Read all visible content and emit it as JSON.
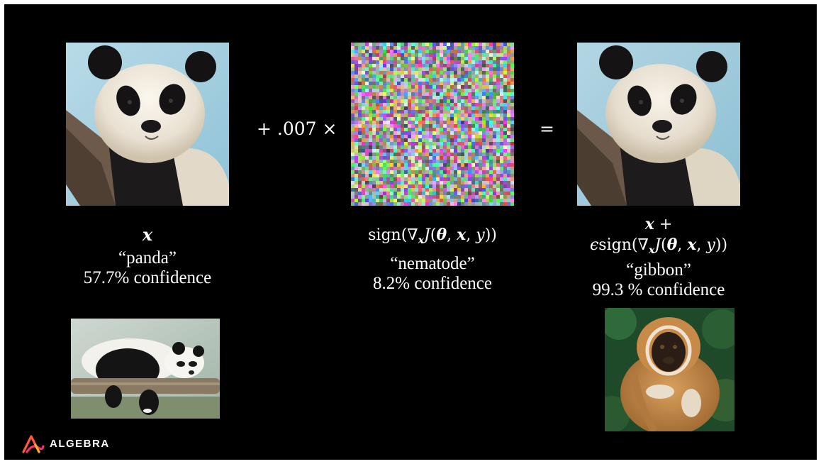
{
  "formula": {
    "plus_coef": "+ .007 ×",
    "equals": "="
  },
  "original": {
    "var": "x",
    "class_label": "“panda”",
    "confidence": "57.7% confidence"
  },
  "perturbation": {
    "func": "sign(",
    "nabla": "∇",
    "subscript": "x",
    "loss": "J",
    "open_paren": "(",
    "theta": "θ",
    "comma1": ", ",
    "x": "x",
    "comma2": ", ",
    "y": "y",
    "close_parens": "))",
    "class_label": "“nematode”",
    "confidence": "8.2% confidence"
  },
  "adversarial": {
    "line1_var": "x",
    "line1_plus": " +",
    "epsilon": "ϵ",
    "func": "sign(",
    "nabla": "∇",
    "subscript": "x",
    "loss": "J",
    "open_paren": "(",
    "theta": "θ",
    "comma1": ", ",
    "x": "x",
    "comma2": ", ",
    "y": "y",
    "close_parens": "))",
    "class_label": "“gibbon”",
    "confidence": "99.3 % confidence"
  },
  "logo": {
    "text": "ALGEBRA",
    "colors": [
      "#ff5a3c",
      "#ff2f6e",
      "#ffb020"
    ]
  }
}
